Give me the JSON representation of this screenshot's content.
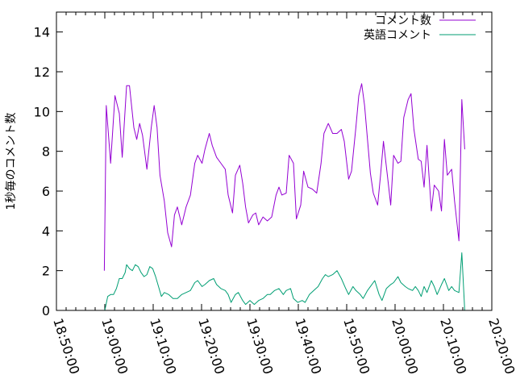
{
  "chart_data": {
    "type": "line",
    "title": "",
    "xlabel": "",
    "ylabel": "1秒毎のコメント数",
    "xlim": [
      "18:50:00",
      "20:20:00"
    ],
    "ylim": [
      0,
      15
    ],
    "grid": false,
    "legend_position": "top-right",
    "x_ticks": [
      "18:50:00",
      "19:00:00",
      "19:10:00",
      "19:20:00",
      "19:30:00",
      "19:40:00",
      "19:50:00",
      "20:00:00",
      "20:10:00",
      "20:20:00"
    ],
    "y_ticks": [
      0,
      2,
      4,
      6,
      8,
      10,
      12,
      14
    ],
    "series": [
      {
        "name": "コメント数",
        "color": "#9400d3",
        "points": [
          [
            "18:59:54",
            2.0
          ],
          [
            "19:00:18",
            10.3
          ],
          [
            "19:01:12",
            7.4
          ],
          [
            "19:02:06",
            10.8
          ],
          [
            "19:03:00",
            9.9
          ],
          [
            "19:03:36",
            7.7
          ],
          [
            "19:04:30",
            11.3
          ],
          [
            "19:05:06",
            11.3
          ],
          [
            "19:06:00",
            9.2
          ],
          [
            "19:06:36",
            8.6
          ],
          [
            "19:07:12",
            9.4
          ],
          [
            "19:07:48",
            8.8
          ],
          [
            "19:08:42",
            7.1
          ],
          [
            "19:09:36",
            9.2
          ],
          [
            "19:10:12",
            10.3
          ],
          [
            "19:10:48",
            9.2
          ],
          [
            "19:11:24",
            6.8
          ],
          [
            "19:12:18",
            5.5
          ],
          [
            "19:13:00",
            3.9
          ],
          [
            "19:13:48",
            3.2
          ],
          [
            "19:14:24",
            4.8
          ],
          [
            "19:15:00",
            5.2
          ],
          [
            "19:15:54",
            4.3
          ],
          [
            "19:16:48",
            5.2
          ],
          [
            "19:17:42",
            5.8
          ],
          [
            "19:18:36",
            7.4
          ],
          [
            "19:19:12",
            7.8
          ],
          [
            "19:20:06",
            7.4
          ],
          [
            "19:20:42",
            8.1
          ],
          [
            "19:21:36",
            8.9
          ],
          [
            "19:22:12",
            8.3
          ],
          [
            "19:23:06",
            7.7
          ],
          [
            "19:24:00",
            7.4
          ],
          [
            "19:24:54",
            7.1
          ],
          [
            "19:25:30",
            5.8
          ],
          [
            "19:26:24",
            4.9
          ],
          [
            "19:27:00",
            6.8
          ],
          [
            "19:27:54",
            7.3
          ],
          [
            "19:28:30",
            6.4
          ],
          [
            "19:29:06",
            5.2
          ],
          [
            "19:29:42",
            4.4
          ],
          [
            "19:30:36",
            4.8
          ],
          [
            "19:31:12",
            4.9
          ],
          [
            "19:31:48",
            4.3
          ],
          [
            "19:32:42",
            4.7
          ],
          [
            "19:33:36",
            4.5
          ],
          [
            "19:34:30",
            4.7
          ],
          [
            "19:35:24",
            5.8
          ],
          [
            "19:36:00",
            6.2
          ],
          [
            "19:36:36",
            5.8
          ],
          [
            "19:37:30",
            5.9
          ],
          [
            "19:38:06",
            7.8
          ],
          [
            "19:39:00",
            7.4
          ],
          [
            "19:39:36",
            4.6
          ],
          [
            "19:40:30",
            5.3
          ],
          [
            "19:41:06",
            7.0
          ],
          [
            "19:42:00",
            6.2
          ],
          [
            "19:42:54",
            6.1
          ],
          [
            "19:43:48",
            5.9
          ],
          [
            "19:44:42",
            7.4
          ],
          [
            "19:45:18",
            8.9
          ],
          [
            "19:46:12",
            9.4
          ],
          [
            "19:47:06",
            8.9
          ],
          [
            "19:48:00",
            8.9
          ],
          [
            "19:48:54",
            9.1
          ],
          [
            "19:49:30",
            8.5
          ],
          [
            "19:50:24",
            6.6
          ],
          [
            "19:51:00",
            7.0
          ],
          [
            "19:51:54",
            9.2
          ],
          [
            "19:52:30",
            10.8
          ],
          [
            "19:53:06",
            11.4
          ],
          [
            "19:53:42",
            10.3
          ],
          [
            "19:54:18",
            8.6
          ],
          [
            "19:54:54",
            6.9
          ],
          [
            "19:55:30",
            5.9
          ],
          [
            "19:56:24",
            5.3
          ],
          [
            "19:57:00",
            6.8
          ],
          [
            "19:57:36",
            8.5
          ],
          [
            "19:58:30",
            6.6
          ],
          [
            "19:59:06",
            5.3
          ],
          [
            "19:59:42",
            7.8
          ],
          [
            "20:00:36",
            7.4
          ],
          [
            "20:01:12",
            7.5
          ],
          [
            "20:01:48",
            9.7
          ],
          [
            "20:02:42",
            10.6
          ],
          [
            "20:03:18",
            10.9
          ],
          [
            "20:03:54",
            9.1
          ],
          [
            "20:04:48",
            7.6
          ],
          [
            "20:05:24",
            7.5
          ],
          [
            "20:06:00",
            6.2
          ],
          [
            "20:06:36",
            8.3
          ],
          [
            "20:07:30",
            5.0
          ],
          [
            "20:08:06",
            6.3
          ],
          [
            "20:09:00",
            6.0
          ],
          [
            "20:09:36",
            5.0
          ],
          [
            "20:10:12",
            8.6
          ],
          [
            "20:10:48",
            6.8
          ],
          [
            "20:11:42",
            7.1
          ],
          [
            "20:12:18",
            5.5
          ],
          [
            "20:13:12",
            3.5
          ],
          [
            "20:13:48",
            10.6
          ],
          [
            "20:14:24",
            8.1
          ]
        ]
      },
      {
        "name": "英語コメント",
        "color": "#009e73",
        "points": [
          [
            "19:00:00",
            0.0
          ],
          [
            "19:00:36",
            0.7
          ],
          [
            "19:01:12",
            0.8
          ],
          [
            "19:01:48",
            0.8
          ],
          [
            "19:02:24",
            1.1
          ],
          [
            "19:03:00",
            1.6
          ],
          [
            "19:03:36",
            1.6
          ],
          [
            "19:04:12",
            1.9
          ],
          [
            "19:04:30",
            2.3
          ],
          [
            "19:05:06",
            2.1
          ],
          [
            "19:05:42",
            2.0
          ],
          [
            "19:06:18",
            2.3
          ],
          [
            "19:06:54",
            2.2
          ],
          [
            "19:07:30",
            1.9
          ],
          [
            "19:08:06",
            1.7
          ],
          [
            "19:08:42",
            1.8
          ],
          [
            "19:09:18",
            2.2
          ],
          [
            "19:09:54",
            2.1
          ],
          [
            "19:10:30",
            1.7
          ],
          [
            "19:11:06",
            1.2
          ],
          [
            "19:11:42",
            0.7
          ],
          [
            "19:12:18",
            0.9
          ],
          [
            "19:13:12",
            0.8
          ],
          [
            "19:14:06",
            0.6
          ],
          [
            "19:15:00",
            0.6
          ],
          [
            "19:15:54",
            0.8
          ],
          [
            "19:16:48",
            0.9
          ],
          [
            "19:17:42",
            1.0
          ],
          [
            "19:18:36",
            1.4
          ],
          [
            "19:19:12",
            1.5
          ],
          [
            "19:20:06",
            1.2
          ],
          [
            "19:20:42",
            1.3
          ],
          [
            "19:21:36",
            1.5
          ],
          [
            "19:22:30",
            1.6
          ],
          [
            "19:23:06",
            1.3
          ],
          [
            "19:24:00",
            1.1
          ],
          [
            "19:24:54",
            1.0
          ],
          [
            "19:25:30",
            0.8
          ],
          [
            "19:26:06",
            0.4
          ],
          [
            "19:27:00",
            0.8
          ],
          [
            "19:27:36",
            0.9
          ],
          [
            "19:28:30",
            0.5
          ],
          [
            "19:29:06",
            0.3
          ],
          [
            "19:30:00",
            0.5
          ],
          [
            "19:30:54",
            0.3
          ],
          [
            "19:31:48",
            0.5
          ],
          [
            "19:32:42",
            0.6
          ],
          [
            "19:33:36",
            0.8
          ],
          [
            "19:34:12",
            0.8
          ],
          [
            "19:35:06",
            1.0
          ],
          [
            "19:36:00",
            1.1
          ],
          [
            "19:36:54",
            0.8
          ],
          [
            "19:37:30",
            1.0
          ],
          [
            "19:38:24",
            1.1
          ],
          [
            "19:39:00",
            0.6
          ],
          [
            "19:39:54",
            0.4
          ],
          [
            "19:40:48",
            0.5
          ],
          [
            "19:41:24",
            0.4
          ],
          [
            "19:42:18",
            0.8
          ],
          [
            "19:43:12",
            1.0
          ],
          [
            "19:44:06",
            1.2
          ],
          [
            "19:45:00",
            1.6
          ],
          [
            "19:45:36",
            1.8
          ],
          [
            "19:46:12",
            1.7
          ],
          [
            "19:47:06",
            1.8
          ],
          [
            "19:48:00",
            2.0
          ],
          [
            "19:48:54",
            1.6
          ],
          [
            "19:49:48",
            1.1
          ],
          [
            "19:50:24",
            0.8
          ],
          [
            "19:51:18",
            1.2
          ],
          [
            "19:51:54",
            1.0
          ],
          [
            "19:52:48",
            0.8
          ],
          [
            "19:53:24",
            0.6
          ],
          [
            "19:54:18",
            1.0
          ],
          [
            "19:55:12",
            1.3
          ],
          [
            "19:55:48",
            1.5
          ],
          [
            "19:56:42",
            0.8
          ],
          [
            "19:57:18",
            0.5
          ],
          [
            "19:58:12",
            1.1
          ],
          [
            "19:59:06",
            1.3
          ],
          [
            "19:59:42",
            1.4
          ],
          [
            "20:00:36",
            1.7
          ],
          [
            "20:01:12",
            1.4
          ],
          [
            "20:02:06",
            1.2
          ],
          [
            "20:02:42",
            1.1
          ],
          [
            "20:03:36",
            1.0
          ],
          [
            "20:04:12",
            1.2
          ],
          [
            "20:04:48",
            1.0
          ],
          [
            "20:05:24",
            0.7
          ],
          [
            "20:06:00",
            1.2
          ],
          [
            "20:06:36",
            0.9
          ],
          [
            "20:07:30",
            1.5
          ],
          [
            "20:08:06",
            1.2
          ],
          [
            "20:08:42",
            0.8
          ],
          [
            "20:09:36",
            1.3
          ],
          [
            "20:10:12",
            1.6
          ],
          [
            "20:11:06",
            1.0
          ],
          [
            "20:11:42",
            1.2
          ],
          [
            "20:12:18",
            1.0
          ],
          [
            "20:13:12",
            0.9
          ],
          [
            "20:13:48",
            2.9
          ],
          [
            "20:14:24",
            0.0
          ]
        ]
      }
    ]
  }
}
